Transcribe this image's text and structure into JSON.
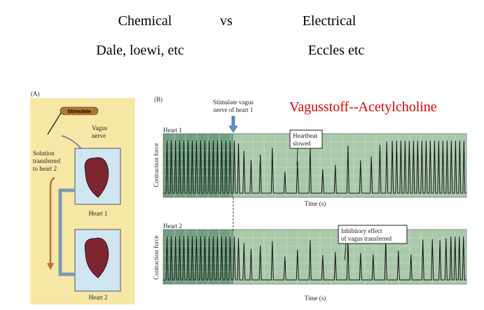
{
  "slide": {
    "heading": {
      "left": "Chemical",
      "middle": "vs",
      "right": "Electrical"
    },
    "subheading": {
      "left": "Dale, loewi, etc",
      "right": "Eccles etc"
    },
    "annotation": "Vagusstoff--Acetylcholine"
  },
  "figure": {
    "panel_a": {
      "label": "(A)",
      "stimulate": "Stimulate",
      "vagus_nerve": [
        "Vagus",
        "nerve"
      ],
      "solution": [
        "Solution",
        "transferred",
        "to heart 2"
      ],
      "heart1": "Heart 1",
      "heart2": "Heart 2"
    },
    "panel_b": {
      "label": "(B)",
      "stimulate_note": [
        "Stimulate vagus",
        "nerve of heart 1"
      ],
      "plot1": {
        "title": "Heart 1",
        "callout": [
          "Heartbeat",
          "slowed"
        ],
        "y_label": "Contraction force",
        "x_label": "Time (s)"
      },
      "plot2": {
        "title": "Heart 2",
        "callout": [
          "Inhibitory effect",
          "of vagus transferred"
        ],
        "y_label": "Contraction force",
        "x_label": "Time (s)"
      }
    }
  }
}
